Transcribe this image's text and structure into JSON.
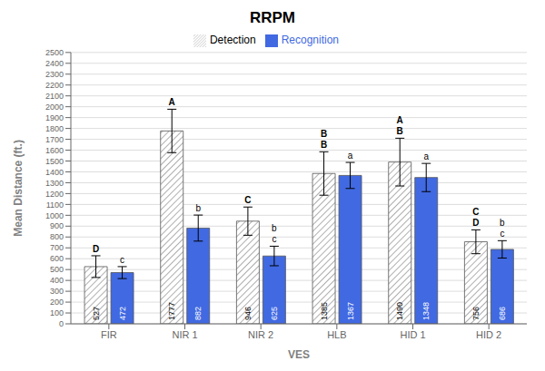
{
  "chart_data": {
    "type": "bar",
    "title": "RRPM",
    "xlabel": "VES",
    "ylabel": "Mean Distance (ft.)",
    "categories": [
      "FIR",
      "NIR 1",
      "NIR 2",
      "HLB",
      "HID 1",
      "HID 2"
    ],
    "series": [
      {
        "name": "Detection",
        "color": "#ffffff",
        "values": [
          527,
          1777,
          946,
          1385,
          1490,
          756
        ],
        "errors": [
          100,
          200,
          130,
          200,
          220,
          110
        ],
        "letters": [
          "D",
          "A",
          "C",
          "B",
          "A",
          "C"
        ],
        "extra_letters": [
          null,
          null,
          null,
          "B",
          "B",
          "D"
        ]
      },
      {
        "name": "Recognition",
        "color": "#4169E1",
        "values": [
          472,
          882,
          625,
          1367,
          1348,
          686
        ],
        "errors": [
          55,
          120,
          90,
          120,
          130,
          80
        ],
        "letters": [
          "c",
          "b",
          "b",
          "a",
          "a",
          "b"
        ],
        "extra_letters": [
          null,
          null,
          "c",
          null,
          null,
          "c"
        ]
      }
    ],
    "ylim": [
      0,
      2500
    ],
    "yticks": [
      0,
      100,
      200,
      300,
      400,
      500,
      600,
      700,
      800,
      900,
      1000,
      1100,
      1200,
      1300,
      1400,
      1500,
      1600,
      1700,
      1800,
      1900,
      2000,
      2100,
      2200,
      2300,
      2400,
      2500
    ],
    "grid": true,
    "legend": "top",
    "data_labels": true
  }
}
